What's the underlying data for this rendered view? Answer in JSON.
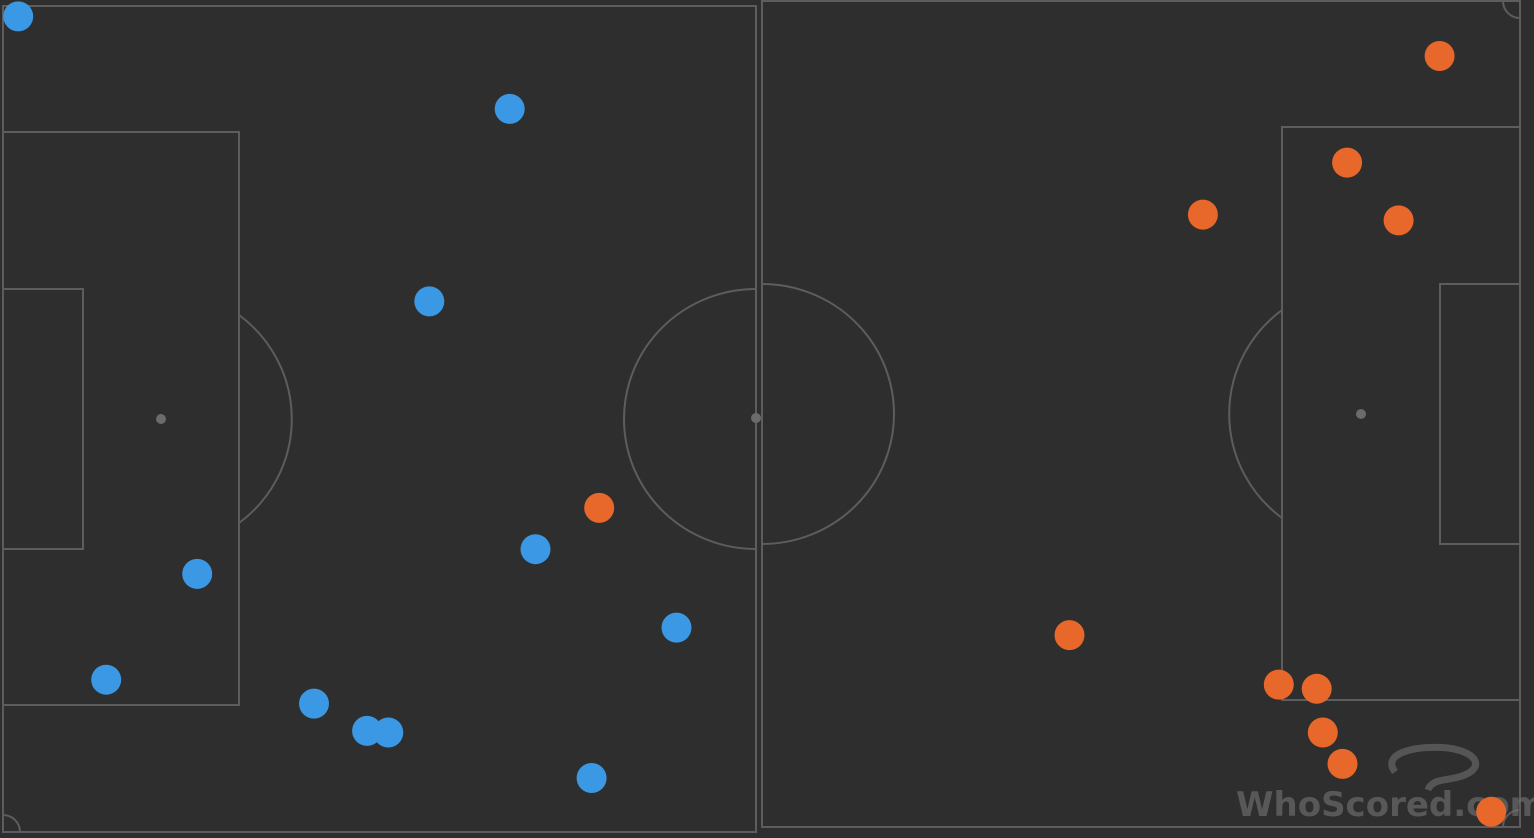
{
  "watermark": "WhoScored.com",
  "colors": {
    "pitch": "#2e2e2e",
    "lines": "#5d5d5d",
    "team_blue": "#3b98e4",
    "team_orange": "#e8672a"
  },
  "chart_data": {
    "type": "scatter",
    "title": "",
    "xlabel": "",
    "ylabel": "",
    "xlim": [
      0,
      100
    ],
    "ylim": [
      0,
      100
    ],
    "grid": false,
    "series": [
      {
        "color": "#3b98e4",
        "points": [
          {
            "x": 1.0,
            "y": 98.5
          },
          {
            "x": 33.4,
            "y": 87.3
          },
          {
            "x": 28.1,
            "y": 64.0
          },
          {
            "x": 35.1,
            "y": 34.0
          },
          {
            "x": 12.8,
            "y": 31.0
          },
          {
            "x": 44.4,
            "y": 24.5
          },
          {
            "x": 6.8,
            "y": 18.2
          },
          {
            "x": 20.5,
            "y": 15.3
          },
          {
            "x": 24.0,
            "y": 12.0
          },
          {
            "x": 25.4,
            "y": 11.8
          },
          {
            "x": 38.8,
            "y": 6.3
          }
        ]
      },
      {
        "color": "#e8672a",
        "points": [
          {
            "x": 39.3,
            "y": 39.0
          },
          {
            "x": 94.7,
            "y": 93.7
          },
          {
            "x": 88.6,
            "y": 80.8
          },
          {
            "x": 79.1,
            "y": 74.5
          },
          {
            "x": 92.0,
            "y": 73.8
          },
          {
            "x": 70.3,
            "y": 23.6
          },
          {
            "x": 84.1,
            "y": 17.6
          },
          {
            "x": 86.6,
            "y": 17.1
          },
          {
            "x": 87.0,
            "y": 11.8
          },
          {
            "x": 88.3,
            "y": 8.0
          },
          {
            "x": 98.1,
            "y": 2.2
          }
        ]
      }
    ]
  }
}
